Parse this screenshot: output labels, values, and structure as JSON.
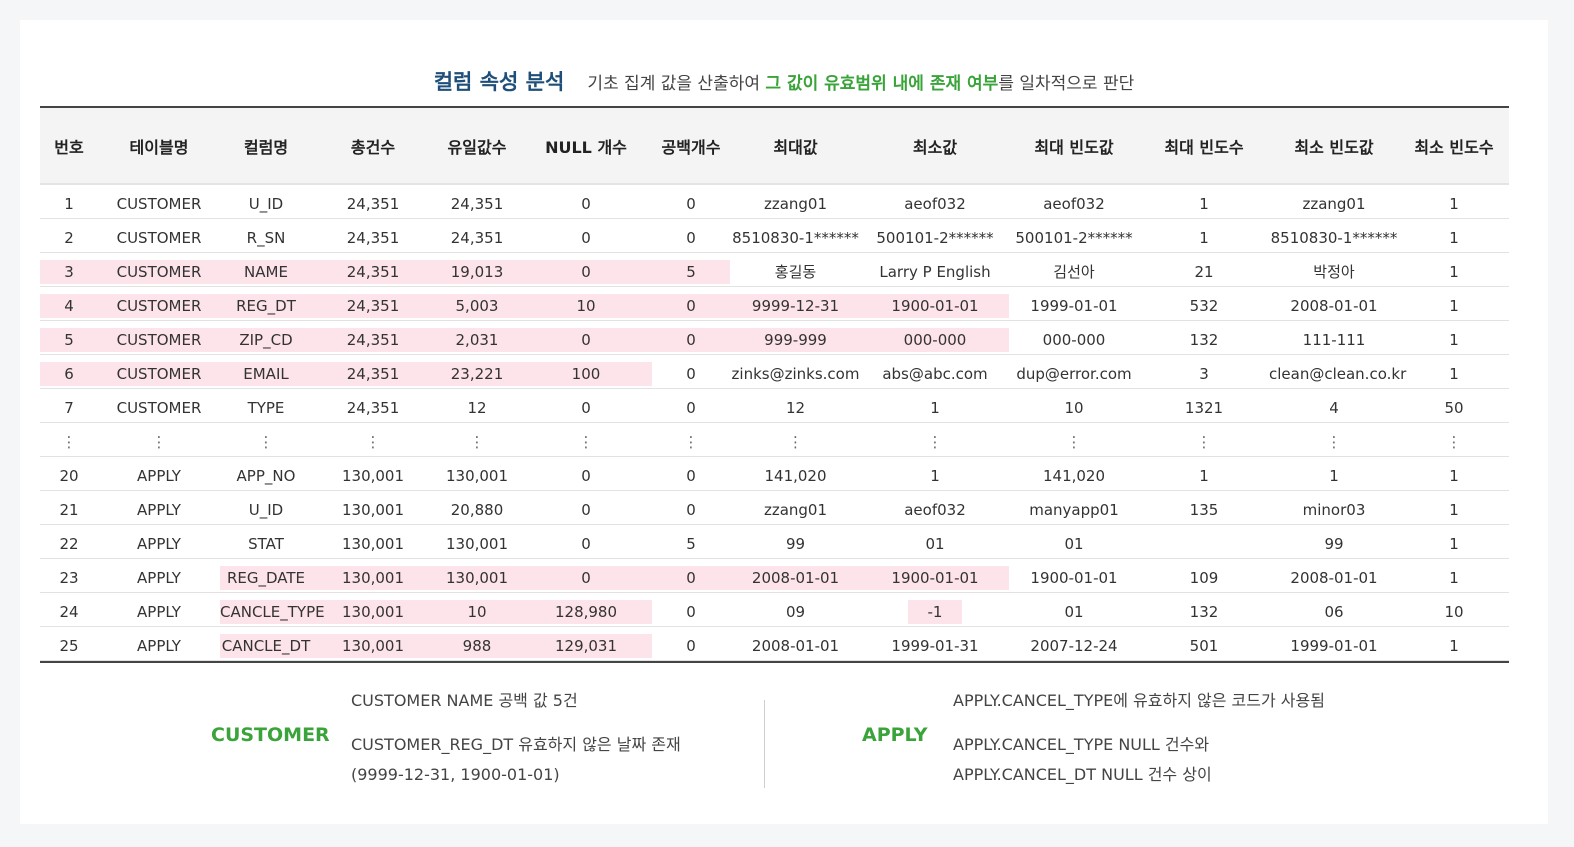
{
  "title": {
    "main": "컬럼 속성 분석",
    "sub_before": "기초 집계 값을 산출하여 ",
    "sub_highlight": "그 값이 유효범위 내에 존재 여부",
    "sub_after": "를 일차적으로 판단"
  },
  "table": {
    "headers": [
      "번호",
      "테이블명",
      "컬럼명",
      "총건수",
      "유일값수",
      "NULL 개수",
      "공백개수",
      "최대값",
      "최소값",
      "최대 빈도값",
      "최대 빈도수",
      "최소 빈도값",
      "최소 빈도수"
    ],
    "rows": [
      [
        "1",
        "CUSTOMER",
        "U_ID",
        "24,351",
        "24,351",
        "0",
        "0",
        "zzang01",
        "aeof032",
        "aeof032",
        "1",
        "zzang01",
        "1"
      ],
      [
        "2",
        "CUSTOMER",
        "R_SN",
        "24,351",
        "24,351",
        "0",
        "0",
        "8510830-1******",
        "500101-2******",
        "500101-2******",
        "1",
        "8510830-1******",
        "1"
      ],
      [
        "3",
        "CUSTOMER",
        "NAME",
        "24,351",
        "19,013",
        "0",
        "5",
        "홍길동",
        "Larry P English",
        "김선아",
        "21",
        "박정아",
        "1"
      ],
      [
        "4",
        "CUSTOMER",
        "REG_DT",
        "24,351",
        "5,003",
        "10",
        "0",
        "9999-12-31",
        "1900-01-01",
        "1999-01-01",
        "532",
        "2008-01-01",
        "1"
      ],
      [
        "5",
        "CUSTOMER",
        "ZIP_CD",
        "24,351",
        "2,031",
        "0",
        "0",
        "999-999",
        "000-000",
        "000-000",
        "132",
        "111-111",
        "1"
      ],
      [
        "6",
        "CUSTOMER",
        "EMAIL",
        "24,351",
        "23,221",
        "100",
        "0",
        "zinks@zinks.com",
        "abs@abc.com",
        "dup@error.com",
        "3",
        "clean@clean.co.kr",
        "1"
      ],
      [
        "7",
        "CUSTOMER",
        "TYPE",
        "24,351",
        "12",
        "0",
        "0",
        "12",
        "1",
        "10",
        "1321",
        "4",
        "50"
      ],
      [
        "⋮",
        "⋮",
        "⋮",
        "⋮",
        "⋮",
        "⋮",
        "⋮",
        "⋮",
        "⋮",
        "⋮",
        "⋮",
        "⋮",
        "⋮"
      ],
      [
        "20",
        "APPLY",
        "APP_NO",
        "130,001",
        "130,001",
        "0",
        "0",
        "141,020",
        "1",
        "141,020",
        "1",
        "1",
        "1"
      ],
      [
        "21",
        "APPLY",
        "U_ID",
        "130,001",
        "20,880",
        "0",
        "0",
        "zzang01",
        "aeof032",
        "manyapp01",
        "135",
        "minor03",
        "1"
      ],
      [
        "22",
        "APPLY",
        "STAT",
        "130,001",
        "130,001",
        "0",
        "5",
        "99",
        "01",
        "01",
        "",
        "99",
        "1"
      ],
      [
        "23",
        "APPLY",
        "REG_DATE",
        "130,001",
        "130,001",
        "0",
        "0",
        "2008-01-01",
        "1900-01-01",
        "1900-01-01",
        "109",
        "2008-01-01",
        "1"
      ],
      [
        "24",
        "APPLY",
        "CANCLE_TYPE",
        "130,001",
        "10",
        "128,980",
        "0",
        "09",
        "-1",
        "01",
        "132",
        "06",
        "10"
      ],
      [
        "25",
        "APPLY",
        "CANCLE_DT",
        "130,001",
        "988",
        "129,031",
        "0",
        "2008-01-01",
        "1999-01-31",
        "2007-12-24",
        "501",
        "1999-01-01",
        "1"
      ]
    ]
  },
  "summary": {
    "customer": {
      "label": "CUSTOMER",
      "line1": "CUSTOMER NAME 공백 값 5건",
      "line2": "CUSTOMER_REG_DT 유효하지 않은 날짜 존재",
      "line3": "(9999-12-31, 1900-01-01)"
    },
    "apply": {
      "label": "APPLY",
      "line1": "APPLY.CANCEL_TYPE에 유효하지 않은 코드가 사용됨",
      "line2": "APPLY.CANCEL_TYPE NULL 건수와",
      "line3": "APPLY.CANCEL_DT NULL 건수 상이"
    }
  },
  "colors": {
    "title": "#1f4f79",
    "accent_green": "#3aa33a",
    "highlight_pink": "#fde3ea"
  }
}
